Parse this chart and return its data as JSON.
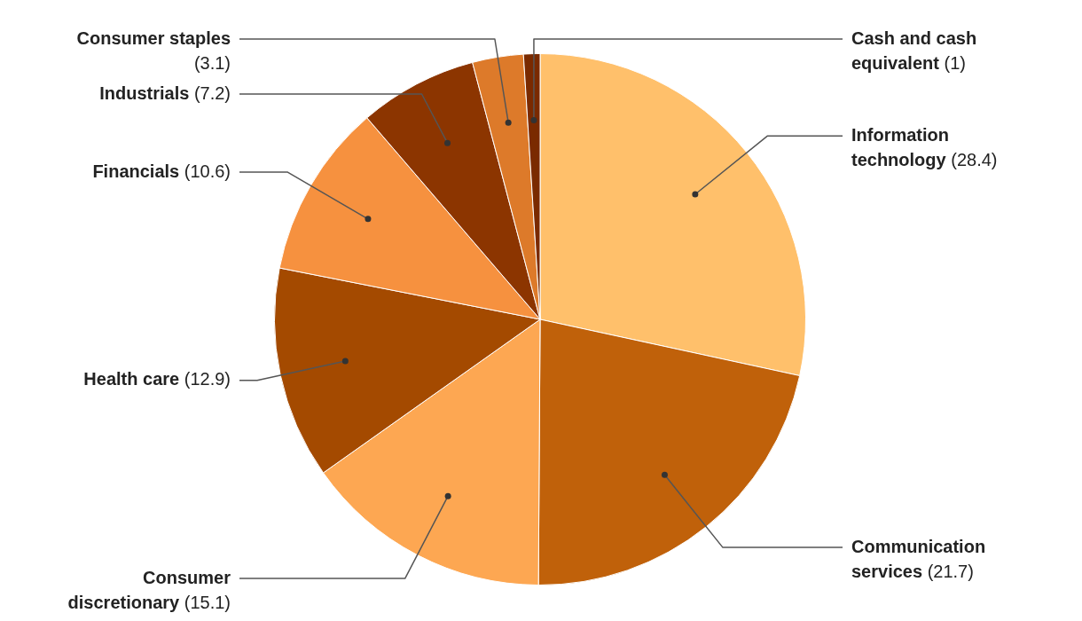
{
  "chart_data": {
    "type": "pie",
    "categories": [
      "Information technology",
      "Communication services",
      "Consumer discretionary",
      "Health care",
      "Financials",
      "Industrials",
      "Consumer staples",
      "Cash and cash equivalent"
    ],
    "values": [
      28.4,
      21.7,
      15.1,
      12.9,
      10.6,
      7.2,
      3.1,
      1
    ],
    "colors": [
      "#ffc06b",
      "#c0610a",
      "#fda752",
      "#a44a00",
      "#f6913f",
      "#8c3500",
      "#dd7a2a",
      "#7a2a00"
    ],
    "value_labels": [
      "(28.4)",
      "(21.7)",
      "(15.1)",
      "(12.9)",
      "(10.6)",
      "(7.2)",
      "(3.1)",
      "(1)"
    ]
  }
}
